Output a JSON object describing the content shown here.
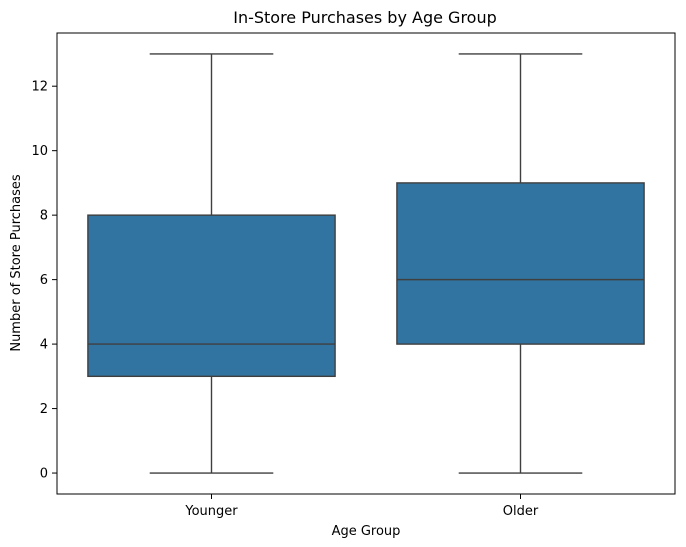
{
  "chart_data": {
    "type": "box",
    "title": "In-Store Purchases by Age Group",
    "xlabel": "Age Group",
    "ylabel": "Number of Store Purchases",
    "categories": [
      "Younger",
      "Older"
    ],
    "boxes": [
      {
        "category": "Younger",
        "whisker_low": 0,
        "q1": 3,
        "median": 4,
        "q3": 8,
        "whisker_high": 13
      },
      {
        "category": "Older",
        "whisker_low": 0,
        "q1": 4,
        "median": 6,
        "q3": 9,
        "whisker_high": 13
      }
    ],
    "yticks": [
      0,
      2,
      4,
      6,
      8,
      10,
      12
    ],
    "ylim": [
      -0.65,
      13.65
    ],
    "grid": false,
    "colors": {
      "box_fill": "#3274a1",
      "line": "#3f3f3f",
      "axis": "#000000"
    }
  }
}
